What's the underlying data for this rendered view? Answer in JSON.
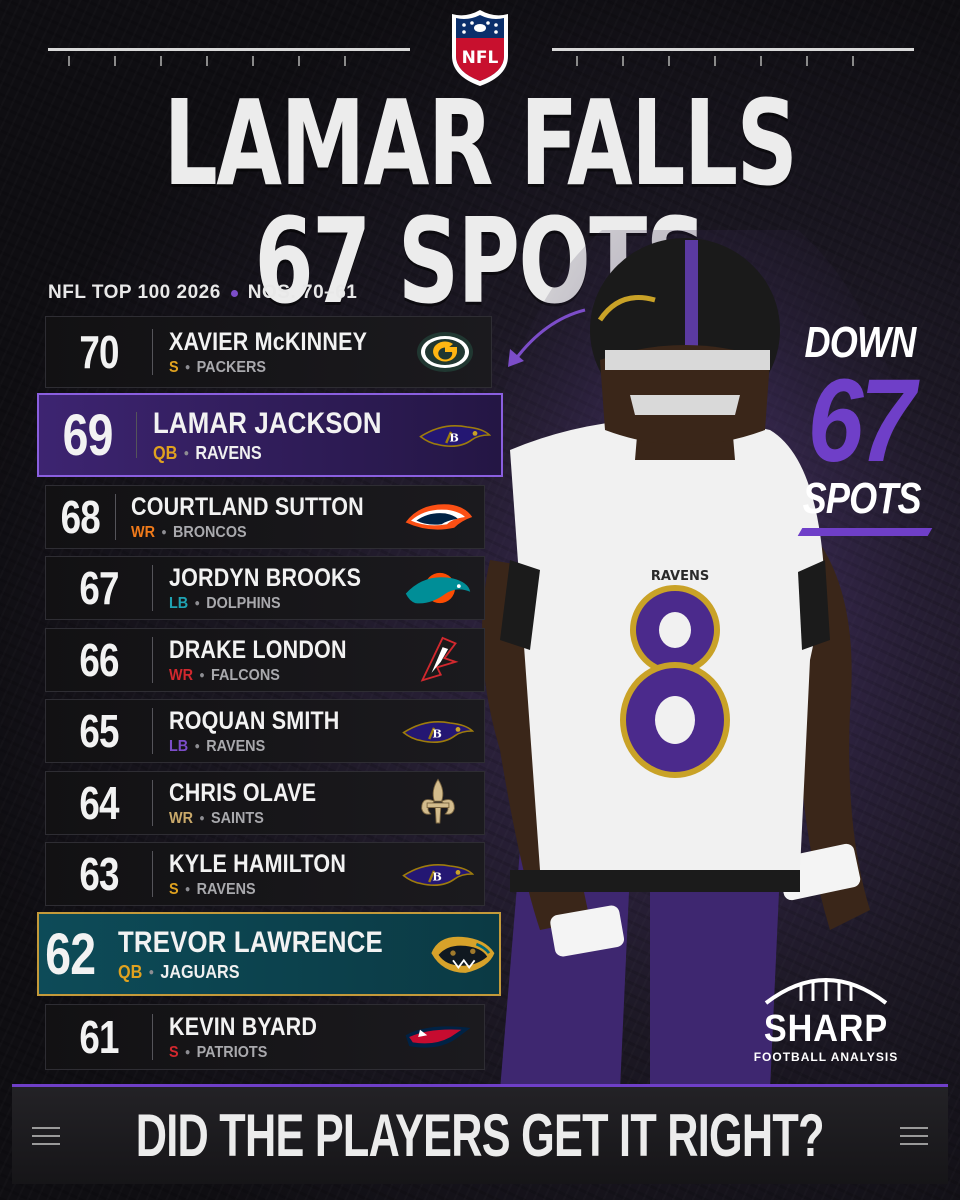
{
  "header": {
    "league_logo_text": "NFL",
    "headline": "LAMAR FALLS 67 SPOTS",
    "subhead_left": "NFL TOP 100 2026",
    "subhead_right": "NOS. 70–61"
  },
  "callout": {
    "top": "DOWN",
    "number": "67",
    "bottom": "SPOTS",
    "accent_color": "#6f3fc8"
  },
  "rankings": [
    {
      "rank": "70",
      "name": "XAVIER McKINNEY",
      "position": "S",
      "team": "PACKERS",
      "pos_color": "#e0a21f",
      "logo": "packers-logo",
      "highlight": ""
    },
    {
      "rank": "69",
      "name": "LAMAR JACKSON",
      "position": "QB",
      "team": "RAVENS",
      "pos_color": "#e0a21f",
      "logo": "ravens-logo",
      "highlight": "purple"
    },
    {
      "rank": "68",
      "name": "COURTLAND SUTTON",
      "position": "WR",
      "team": "BRONCOS",
      "pos_color": "#f07a1a",
      "logo": "broncos-logo",
      "highlight": ""
    },
    {
      "rank": "67",
      "name": "JORDYN BROOKS",
      "position": "LB",
      "team": "DOLPHINS",
      "pos_color": "#1fa3b3",
      "logo": "dolphins-logo",
      "highlight": ""
    },
    {
      "rank": "66",
      "name": "DRAKE LONDON",
      "position": "WR",
      "team": "FALCONS",
      "pos_color": "#d2282e",
      "logo": "falcons-logo",
      "highlight": ""
    },
    {
      "rank": "65",
      "name": "ROQUAN SMITH",
      "position": "LB",
      "team": "RAVENS",
      "pos_color": "#7c4dc9",
      "logo": "ravens-logo",
      "highlight": ""
    },
    {
      "rank": "64",
      "name": "CHRIS OLAVE",
      "position": "WR",
      "team": "SAINTS",
      "pos_color": "#c9a96a",
      "logo": "saints-logo",
      "highlight": ""
    },
    {
      "rank": "63",
      "name": "KYLE HAMILTON",
      "position": "S",
      "team": "RAVENS",
      "pos_color": "#e0a21f",
      "logo": "ravens-logo",
      "highlight": ""
    },
    {
      "rank": "62",
      "name": "TREVOR LAWRENCE",
      "position": "QB",
      "team": "JAGUARS",
      "pos_color": "#e0a21f",
      "logo": "jaguars-logo",
      "highlight": "teal"
    },
    {
      "rank": "61",
      "name": "KEVIN BYARD",
      "position": "S",
      "team": "PATRIOTS",
      "pos_color": "#d2282e",
      "logo": "patriots-logo",
      "highlight": ""
    }
  ],
  "brand": {
    "name": "SHARP",
    "tagline": "FOOTBALL ANALYSIS"
  },
  "footer": {
    "question": "DID THE PLAYERS GET IT RIGHT?"
  }
}
